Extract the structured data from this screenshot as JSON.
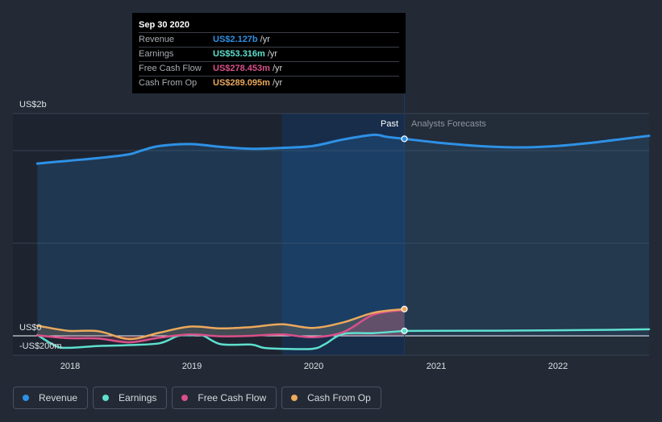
{
  "tooltip": {
    "date": "Sep 30 2020",
    "rows": [
      {
        "label": "Revenue",
        "value": "US$2.127b",
        "unit": "/yr",
        "color": "#2e91e5"
      },
      {
        "label": "Earnings",
        "value": "US$53.316m",
        "unit": "/yr",
        "color": "#5fe0cf"
      },
      {
        "label": "Free Cash Flow",
        "value": "US$278.453m",
        "unit": "/yr",
        "color": "#d9508a"
      },
      {
        "label": "Cash From Op",
        "value": "US$289.095m",
        "unit": "/yr",
        "color": "#eba95c"
      }
    ]
  },
  "legend": [
    {
      "label": "Revenue",
      "color": "#2e91e5"
    },
    {
      "label": "Earnings",
      "color": "#5fe0cf"
    },
    {
      "label": "Free Cash Flow",
      "color": "#d9508a"
    },
    {
      "label": "Cash From Op",
      "color": "#eba95c"
    }
  ],
  "chart_data": {
    "type": "line",
    "y_tick_labels": [
      "US$2b",
      "US$0",
      "-US$200m"
    ],
    "x_tick_labels": [
      "2018",
      "2019",
      "2020",
      "2021",
      "2022"
    ],
    "ylim": [
      -200,
      2300
    ],
    "xlim": [
      2017.55,
      2022.75
    ],
    "past_label": "Past",
    "forecast_label": "Analysts Forecasts",
    "divider_x": 2020.75,
    "highlight_start_x": 2019.75,
    "grid": true,
    "series": [
      {
        "name": "Revenue",
        "color": "#2e91e5",
        "unit": "US$m",
        "x": [
          2017.75,
          2018.0,
          2018.25,
          2018.5,
          2018.6,
          2018.75,
          2019.0,
          2019.25,
          2019.5,
          2019.75,
          2020.0,
          2020.25,
          2020.5,
          2020.6,
          2020.75
        ],
        "values": [
          1860,
          1890,
          1920,
          1960,
          2000,
          2050,
          2070,
          2040,
          2020,
          2030,
          2050,
          2120,
          2170,
          2150,
          2127
        ]
      },
      {
        "name": "Revenue forecast",
        "color": "#2e91e5",
        "unit": "US$m",
        "x": [
          2020.75,
          2021.0,
          2021.25,
          2021.5,
          2021.75,
          2022.0,
          2022.25,
          2022.5,
          2022.75
        ],
        "values": [
          2127,
          2090,
          2060,
          2040,
          2035,
          2050,
          2080,
          2120,
          2160
        ]
      },
      {
        "name": "Earnings",
        "color": "#5fe0cf",
        "unit": "US$m",
        "x": [
          2017.75,
          2017.9,
          2018.0,
          2018.25,
          2018.5,
          2018.75,
          2018.9,
          2019.0,
          2019.1,
          2019.25,
          2019.5,
          2019.6,
          2019.75,
          2020.0,
          2020.1,
          2020.25,
          2020.5,
          2020.75
        ],
        "values": [
          10,
          -110,
          -130,
          -110,
          -100,
          -80,
          0,
          5,
          5,
          -90,
          -95,
          -130,
          -140,
          -140,
          -90,
          20,
          30,
          53
        ]
      },
      {
        "name": "Earnings forecast",
        "color": "#5fe0cf",
        "unit": "US$m",
        "x": [
          2020.75,
          2021.0,
          2021.5,
          2022.0,
          2022.5,
          2022.75
        ],
        "values": [
          53,
          54,
          56,
          60,
          66,
          70
        ]
      },
      {
        "name": "Free Cash Flow",
        "color": "#d9508a",
        "unit": "US$m",
        "x": [
          2017.75,
          2018.0,
          2018.25,
          2018.5,
          2018.75,
          2019.0,
          2019.25,
          2019.5,
          2019.75,
          2020.0,
          2020.25,
          2020.5,
          2020.75
        ],
        "values": [
          5,
          -25,
          -30,
          -70,
          -20,
          15,
          -5,
          0,
          15,
          -15,
          40,
          230,
          278
        ]
      },
      {
        "name": "Cash From Op",
        "color": "#eba95c",
        "unit": "US$m",
        "x": [
          2017.75,
          2018.0,
          2018.25,
          2018.5,
          2018.75,
          2019.0,
          2019.25,
          2019.5,
          2019.75,
          2020.0,
          2020.25,
          2020.5,
          2020.75
        ],
        "values": [
          110,
          55,
          50,
          -35,
          35,
          100,
          80,
          95,
          125,
          85,
          145,
          250,
          289
        ]
      }
    ]
  }
}
